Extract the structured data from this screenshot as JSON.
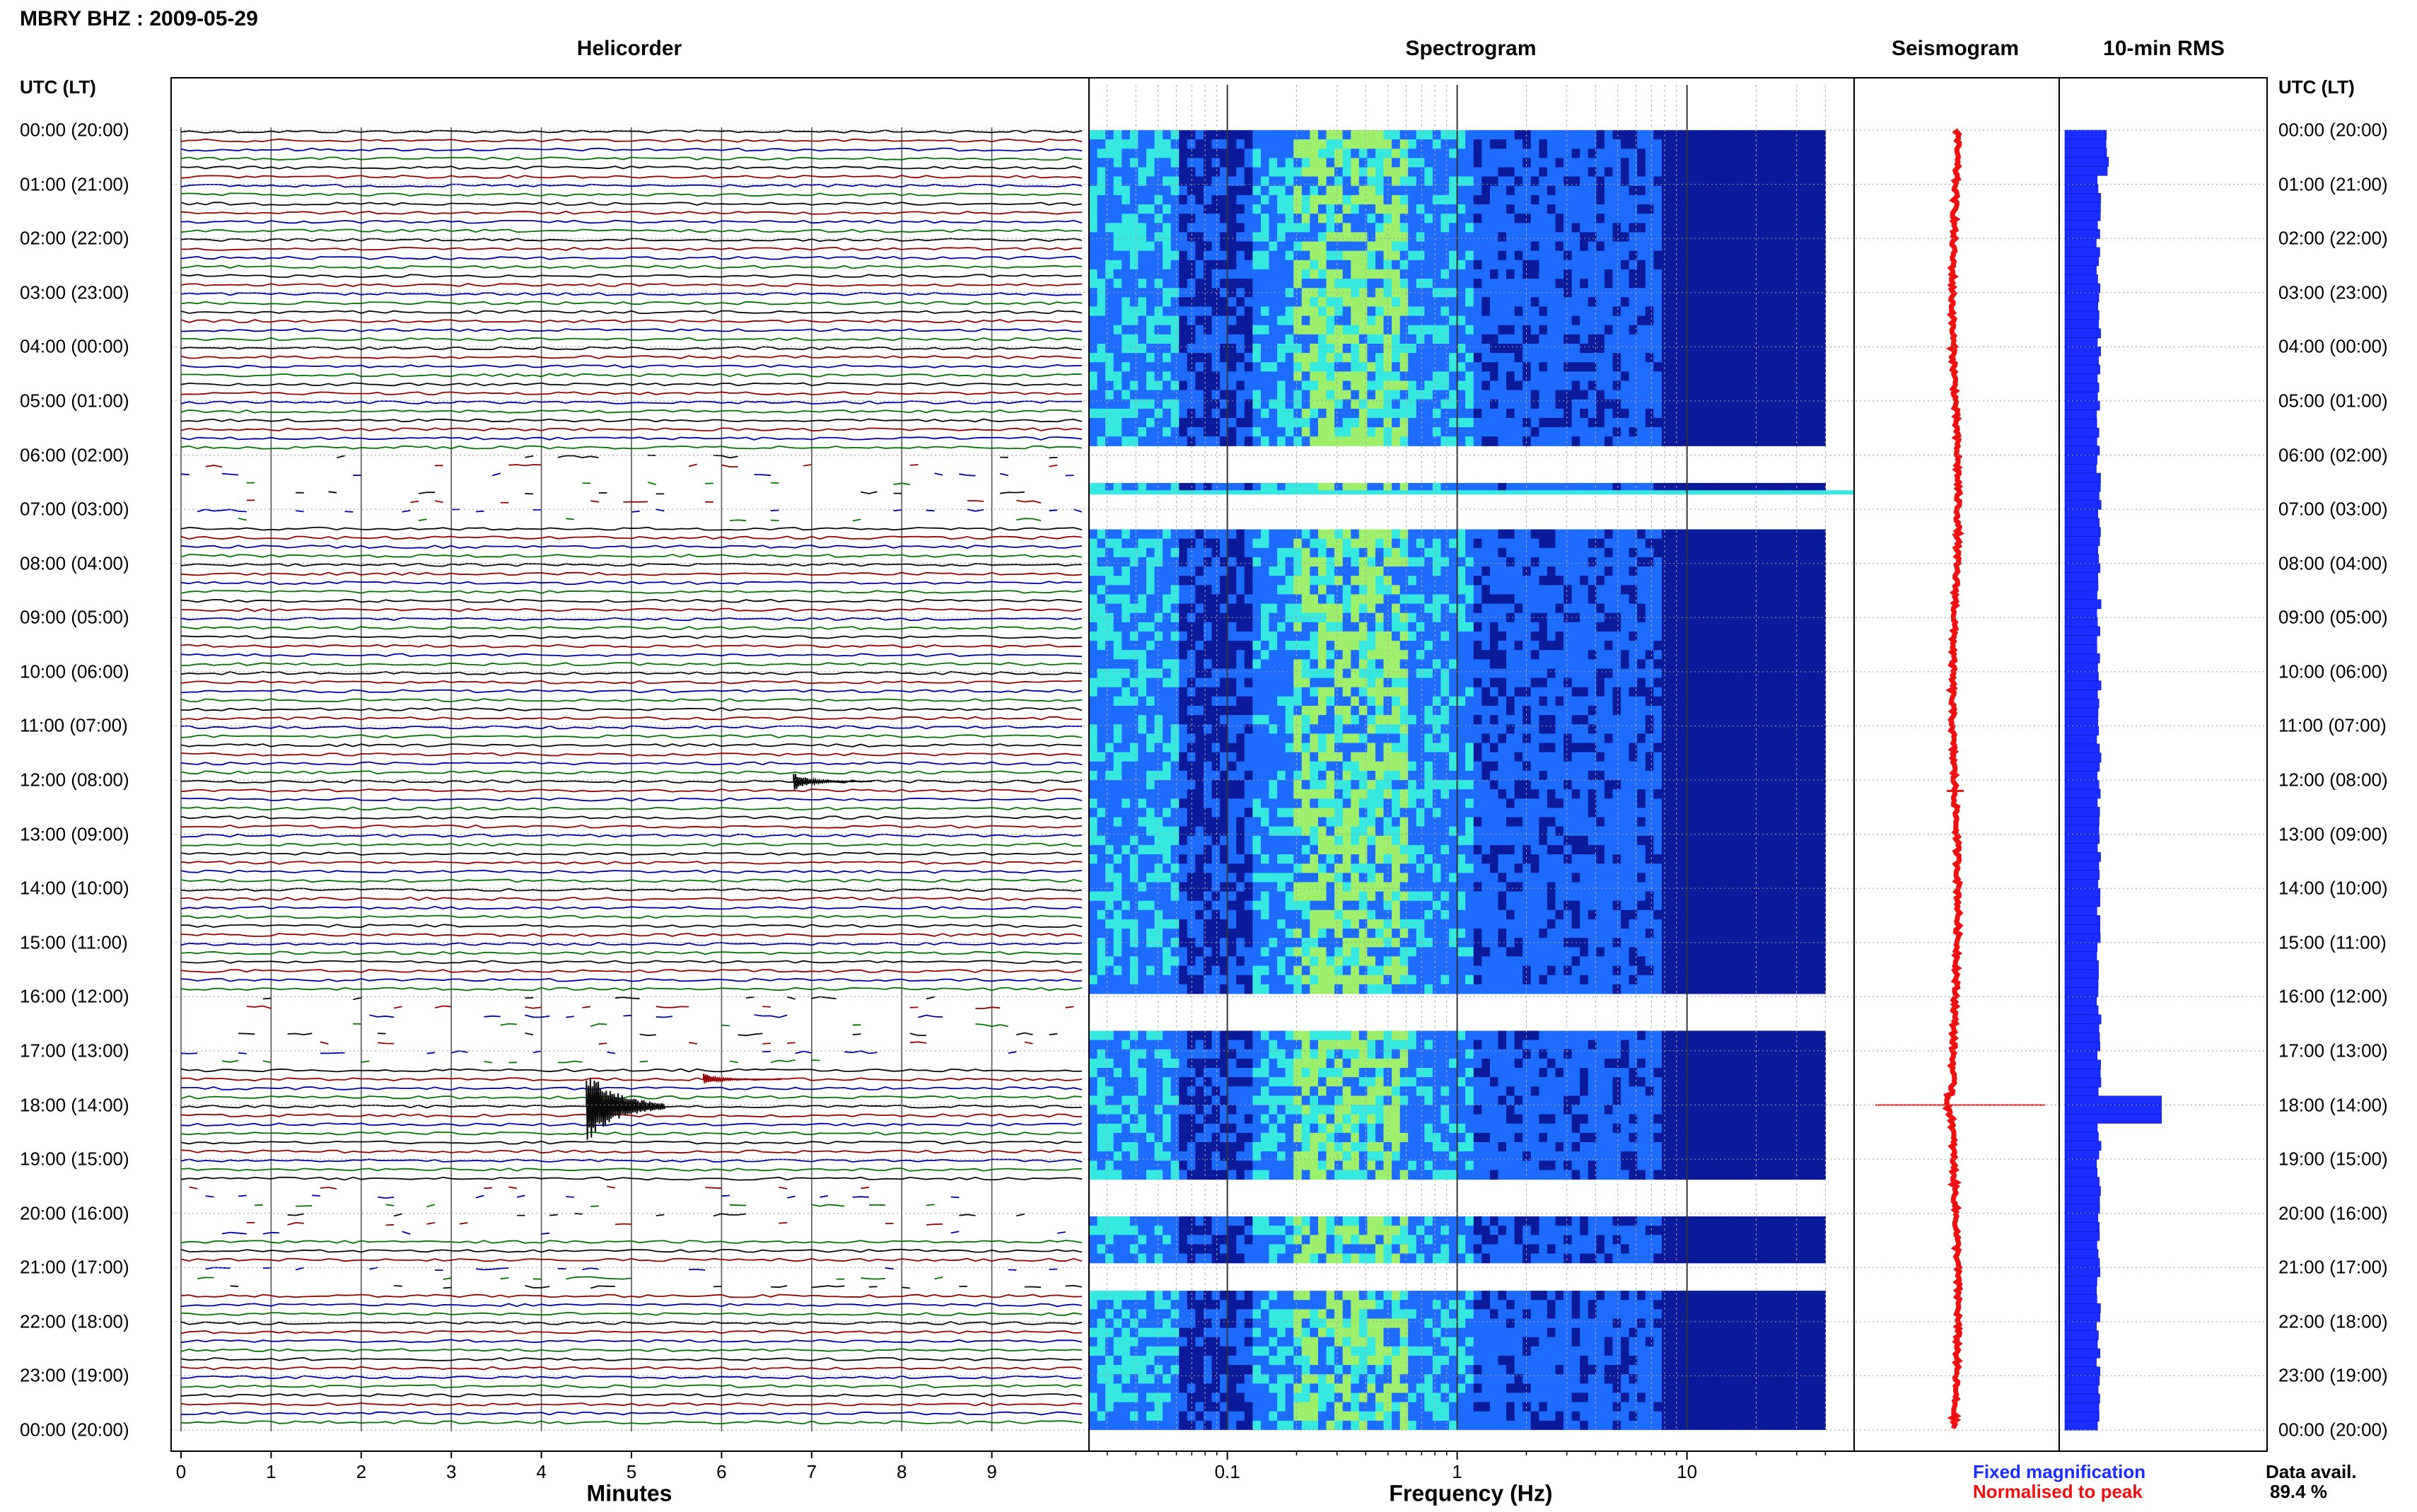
{
  "header": {
    "station_title": "MBRY BHZ : 2009-05-29",
    "panels": {
      "helicorder": "Helicorder",
      "spectrogram": "Spectrogram",
      "seismogram": "Seismogram",
      "rms": "10-min RMS"
    },
    "tz_label": "UTC (LT)"
  },
  "time_labels": [
    "00:00 (20:00)",
    "01:00 (21:00)",
    "02:00 (22:00)",
    "03:00 (23:00)",
    "04:00 (00:00)",
    "05:00 (01:00)",
    "06:00 (02:00)",
    "07:00 (03:00)",
    "08:00 (04:00)",
    "09:00 (05:00)",
    "10:00 (06:00)",
    "11:00 (07:00)",
    "12:00 (08:00)",
    "13:00 (09:00)",
    "14:00 (10:00)",
    "15:00 (11:00)",
    "16:00 (12:00)",
    "17:00 (13:00)",
    "18:00 (14:00)",
    "19:00 (15:00)",
    "20:00 (16:00)",
    "21:00 (17:00)",
    "22:00 (18:00)",
    "23:00 (19:00)",
    "00:00 (20:00)"
  ],
  "footer": {
    "minutes_label": "Minutes",
    "freq_label": "Frequency (Hz)",
    "legend_fixed": "Fixed magnification",
    "legend_normalised": "Normalised to peak",
    "data_avail_label": "Data avail.",
    "data_avail_value": "89.4 %"
  },
  "colors": {
    "trace": [
      "#0a0a0a",
      "#9b0000",
      "#0000aa",
      "#007700"
    ],
    "spec_low": "#0a1a9a",
    "spec_mid": "#1e6cff",
    "spec_high": "#35e8e0",
    "spec_peak": "#9ef06c",
    "seismogram": "#ee1111",
    "rms": "#1a2cff"
  },
  "chart_data": [
    {
      "type": "line",
      "title": "Helicorder",
      "xlabel": "Minutes",
      "ylabel": "UTC (LT)",
      "x_ticks": [
        "0",
        "1",
        "2",
        "3",
        "4",
        "5",
        "6",
        "7",
        "8",
        "9"
      ],
      "xlim": [
        0,
        10
      ],
      "ylim_hours": [
        0,
        24
      ],
      "lines_per_hour": 6,
      "gaps_hours": [
        [
          6.0,
          7.3
        ],
        [
          16.0,
          17.2
        ],
        [
          19.4,
          20.5
        ],
        [
          20.9,
          21.4
        ]
      ],
      "events": [
        {
          "hour": 18.0,
          "minute": 4.5,
          "peak": 1.0
        },
        {
          "hour": 12.0,
          "minute": 6.8,
          "peak": 0.15
        },
        {
          "hour": 17.5,
          "minute": 5.8,
          "peak": 0.06
        }
      ]
    },
    {
      "type": "heatmap",
      "title": "Spectrogram",
      "xlabel": "Frequency (Hz)",
      "x_scale": "log",
      "xlim": [
        0.025,
        40
      ],
      "x_ticks": [
        "0.1",
        "1",
        "10"
      ],
      "peak_band_hz": [
        0.2,
        0.6
      ],
      "gaps_hours": [
        [
          5.9,
          6.5
        ],
        [
          6.75,
          7.3
        ],
        [
          15.95,
          16.7
        ],
        [
          19.35,
          20.0
        ],
        [
          20.95,
          21.45
        ]
      ]
    },
    {
      "type": "line",
      "title": "Seismogram",
      "series": [
        {
          "name": "Normalised to peak",
          "color": "#ee1111"
        }
      ],
      "spike_hour": 18.0
    },
    {
      "type": "bar",
      "title": "10-min RMS",
      "note": "horizontal bars per 10-min interval, relative amplitude",
      "baseline": 0.35,
      "peak": {
        "hour": 18.0,
        "value": 1.0
      }
    }
  ]
}
